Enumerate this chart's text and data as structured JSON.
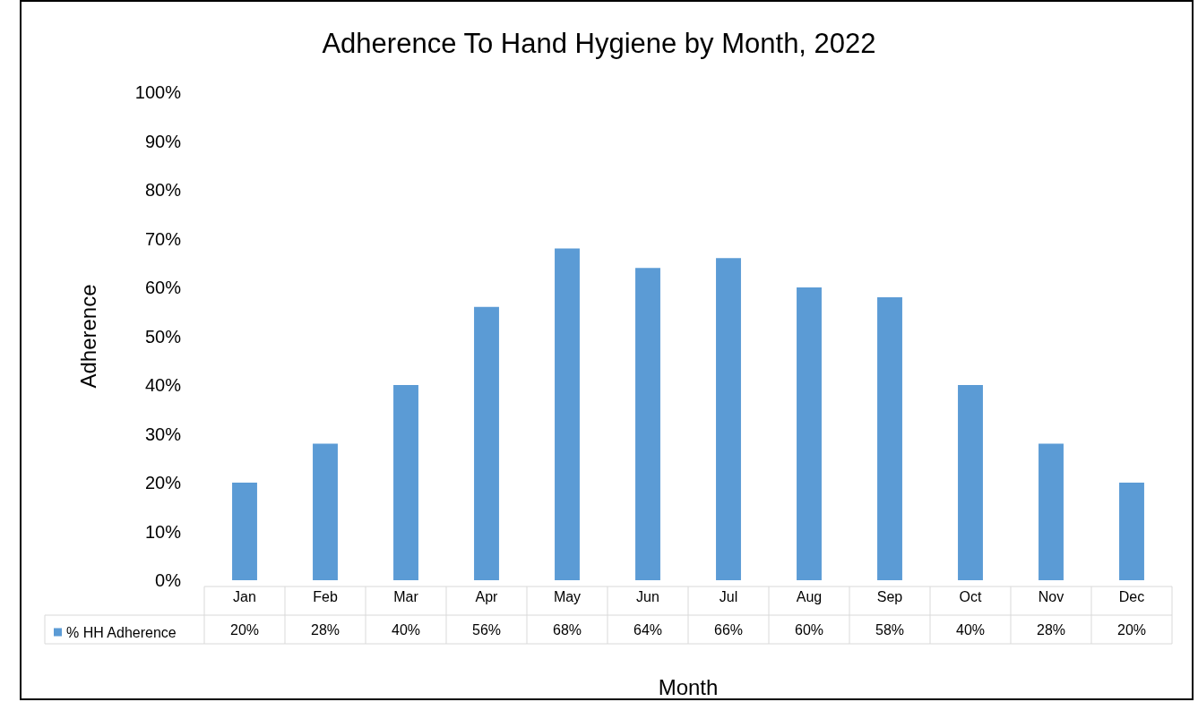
{
  "chart_data": {
    "type": "bar",
    "title": "Adherence To Hand Hygiene by Month, 2022",
    "xlabel": "Month",
    "ylabel": "Adherence",
    "categories": [
      "Jan",
      "Feb",
      "Mar",
      "Apr",
      "May",
      "Jun",
      "Jul",
      "Aug",
      "Sep",
      "Oct",
      "Nov",
      "Dec"
    ],
    "series": [
      {
        "name": "% HH Adherence",
        "color": "#5b9bd5",
        "values": [
          20,
          28,
          40,
          56,
          68,
          64,
          66,
          60,
          58,
          40,
          28,
          20
        ],
        "value_labels": [
          "20%",
          "28%",
          "40%",
          "56%",
          "68%",
          "64%",
          "66%",
          "60%",
          "58%",
          "40%",
          "28%",
          "20%"
        ]
      }
    ],
    "ylim": [
      0,
      100
    ],
    "yticks": [
      {
        "value": 0,
        "label": "0%"
      },
      {
        "value": 10,
        "label": "10%"
      },
      {
        "value": 20,
        "label": "20%"
      },
      {
        "value": 30,
        "label": "30%"
      },
      {
        "value": 40,
        "label": "40%"
      },
      {
        "value": 50,
        "label": "50%"
      },
      {
        "value": 60,
        "label": "60%"
      },
      {
        "value": 70,
        "label": "70%"
      },
      {
        "value": 80,
        "label": "80%"
      },
      {
        "value": 90,
        "label": "90%"
      },
      {
        "value": 100,
        "label": "100%"
      }
    ],
    "grid": false,
    "legend": "bottom left"
  }
}
